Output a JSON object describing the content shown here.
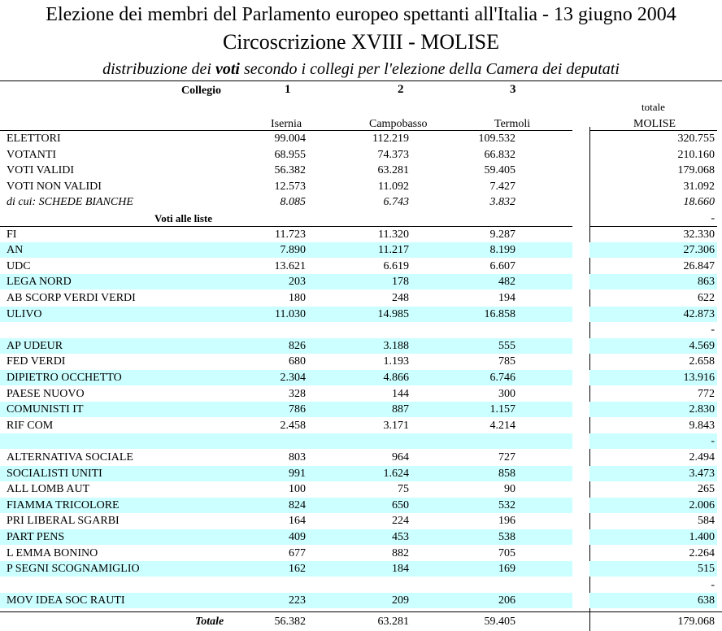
{
  "header": {
    "title": "Elezione dei membri del Parlamento europeo spettanti all'Italia - 13 giugno 2004",
    "subtitle": "Circoscrizione XVIII - MOLISE",
    "caption_pre": "distribuzione dei",
    "caption_bold": "voti",
    "caption_post": "secondo i collegi per l'elezione della Camera dei deputati"
  },
  "columns": {
    "collegio_label": "Collegio",
    "nums": [
      "1",
      "2",
      "3"
    ],
    "names": [
      "Isernia",
      "Campobasso",
      "Termoli"
    ],
    "total_top": "totale",
    "total_bottom": "MOLISE"
  },
  "general_rows": [
    {
      "label": "ELETTORI",
      "values": [
        "99.004",
        "112.219",
        "109.532"
      ],
      "total": "320.755"
    },
    {
      "label": "VOTANTI",
      "values": [
        "68.955",
        "74.373",
        "66.832"
      ],
      "total": "210.160"
    },
    {
      "label": "VOTI VALIDI",
      "values": [
        "56.382",
        "63.281",
        "59.405"
      ],
      "total": "179.068"
    },
    {
      "label": "VOTI NON VALIDI",
      "values": [
        "12.573",
        "11.092",
        "7.427"
      ],
      "total": "31.092"
    },
    {
      "label": "di cui:  SCHEDE BIANCHE",
      "values": [
        "8.085",
        "6.743",
        "3.832"
      ],
      "total": "18.660"
    }
  ],
  "lists_header": "Voti alle liste",
  "lists_header_total": "-",
  "party_rows": [
    {
      "label": "FI",
      "values": [
        "11.723",
        "11.320",
        "9.287"
      ],
      "total": "32.330"
    },
    {
      "label": "AN",
      "values": [
        "7.890",
        "11.217",
        "8.199"
      ],
      "total": "27.306"
    },
    {
      "label": "UDC",
      "values": [
        "13.621",
        "6.619",
        "6.607"
      ],
      "total": "26.847"
    },
    {
      "label": "LEGA NORD",
      "values": [
        "203",
        "178",
        "482"
      ],
      "total": "863"
    },
    {
      "label": "AB SCORP VERDI VERDI",
      "values": [
        "180",
        "248",
        "194"
      ],
      "total": "622"
    },
    {
      "label": "ULIVO",
      "values": [
        "11.030",
        "14.985",
        "16.858"
      ],
      "total": "42.873"
    },
    {
      "label": "",
      "values": [
        "",
        "",
        ""
      ],
      "total": "-"
    },
    {
      "label": "AP  UDEUR",
      "values": [
        "826",
        "3.188",
        "555"
      ],
      "total": "4.569"
    },
    {
      "label": "FED VERDI",
      "values": [
        "680",
        "1.193",
        "785"
      ],
      "total": "2.658"
    },
    {
      "label": "DIPIETRO OCCHETTO",
      "values": [
        "2.304",
        "4.866",
        "6.746"
      ],
      "total": "13.916"
    },
    {
      "label": "PAESE NUOVO",
      "values": [
        "328",
        "144",
        "300"
      ],
      "total": "772"
    },
    {
      "label": "COMUNISTI IT",
      "values": [
        "786",
        "887",
        "1.157"
      ],
      "total": "2.830"
    },
    {
      "label": "RIF COM",
      "values": [
        "2.458",
        "3.171",
        "4.214"
      ],
      "total": "9.843"
    },
    {
      "label": "",
      "values": [
        "",
        "",
        ""
      ],
      "total": "-"
    },
    {
      "label": "ALTERNATIVA SOCIALE",
      "values": [
        "803",
        "964",
        "727"
      ],
      "total": "2.494"
    },
    {
      "label": "SOCIALISTI UNITI",
      "values": [
        "991",
        "1.624",
        "858"
      ],
      "total": "3.473"
    },
    {
      "label": "ALL LOMB AUT",
      "values": [
        "100",
        "75",
        "90"
      ],
      "total": "265"
    },
    {
      "label": "FIAMMA TRICOLORE",
      "values": [
        "824",
        "650",
        "532"
      ],
      "total": "2.006"
    },
    {
      "label": "PRI LIBERAL SGARBI",
      "values": [
        "164",
        "224",
        "196"
      ],
      "total": "584"
    },
    {
      "label": "PART PENS",
      "values": [
        "409",
        "453",
        "538"
      ],
      "total": "1.400"
    },
    {
      "label": "L EMMA BONINO",
      "values": [
        "677",
        "882",
        "705"
      ],
      "total": "2.264"
    },
    {
      "label": "P SEGNI SCOGNAMIGLIO",
      "values": [
        "162",
        "184",
        "169"
      ],
      "total": "515"
    },
    {
      "label": "",
      "values": [
        "",
        "",
        ""
      ],
      "total": "-"
    },
    {
      "label": "MOV IDEA SOC  RAUTI",
      "values": [
        "223",
        "209",
        "206"
      ],
      "total": "638"
    }
  ],
  "total_row": {
    "label": "Totale",
    "values": [
      "56.382",
      "63.281",
      "59.405"
    ],
    "total": "179.068"
  }
}
